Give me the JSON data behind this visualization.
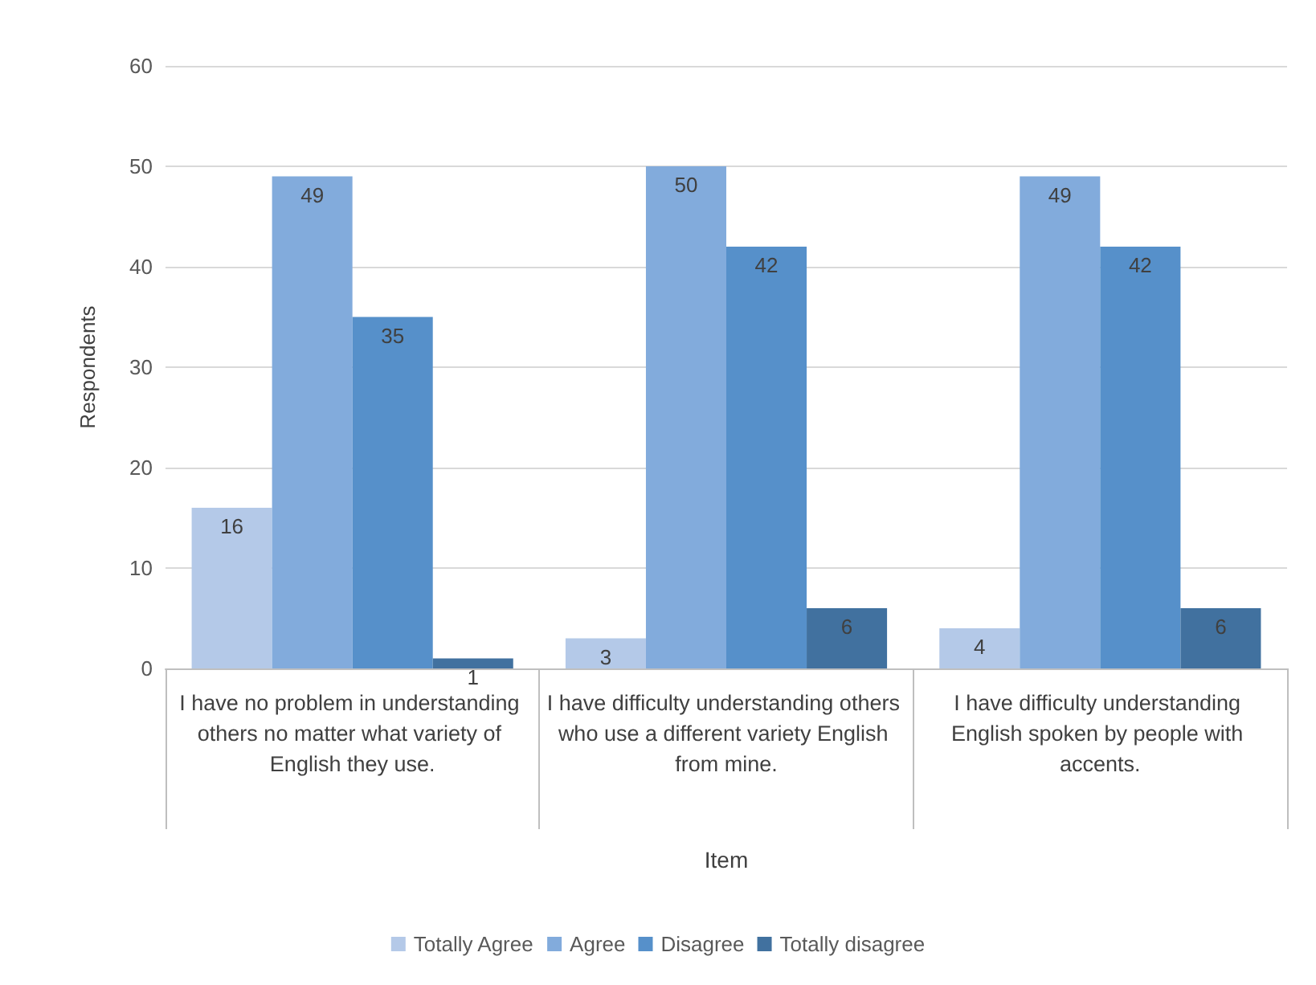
{
  "chart_data": {
    "type": "bar",
    "xlabel": "Item",
    "ylabel": "Respondents",
    "categories": [
      "I have no problem in understanding others no matter what variety of English they use.",
      "I have difficulty understanding others who use a different variety English from mine.",
      "I have difficulty understanding English spoken by people with accents."
    ],
    "series": [
      {
        "name": "Totally Agree",
        "color": "#b4c9e8",
        "values": [
          16,
          3,
          4
        ]
      },
      {
        "name": "Agree",
        "color": "#82abdc",
        "values": [
          49,
          50,
          49
        ]
      },
      {
        "name": "Disagree",
        "color": "#5690ca",
        "values": [
          35,
          42,
          42
        ]
      },
      {
        "name": "Totally disagree",
        "color": "#41719f",
        "values": [
          1,
          6,
          6
        ]
      }
    ],
    "ylim": [
      0,
      60
    ],
    "yticks": [
      0,
      10,
      20,
      30,
      40,
      50,
      60
    ],
    "grid": "y",
    "legend": "bottom",
    "data_labels": true
  }
}
